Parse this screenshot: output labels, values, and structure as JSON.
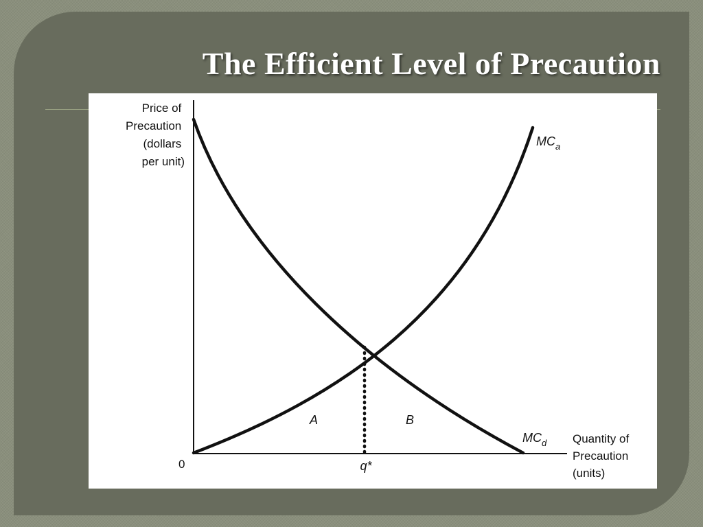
{
  "slide": {
    "title": "The Efficient Level of Precaution"
  },
  "diagram": {
    "y_axis_label": [
      "Price of",
      "Precaution",
      "(dollars",
      "per unit)"
    ],
    "x_axis_label": [
      "Quantity of",
      "Precaution",
      "(units)"
    ],
    "origin_label": "0",
    "curves": [
      {
        "id": "mca",
        "label": "MC",
        "subscript": "a",
        "shape": "increasing-convex"
      },
      {
        "id": "mcd",
        "label": "MC",
        "subscript": "d",
        "shape": "decreasing-convex"
      }
    ],
    "intersection_label": "q*",
    "area_labels": [
      "A",
      "B"
    ]
  },
  "colors": {
    "background": "#8a8f7c",
    "panel": "#686c5d",
    "title": "#ffffff",
    "divider": "#9aa283",
    "figure_bg": "#ffffff",
    "ink": "#111111"
  }
}
